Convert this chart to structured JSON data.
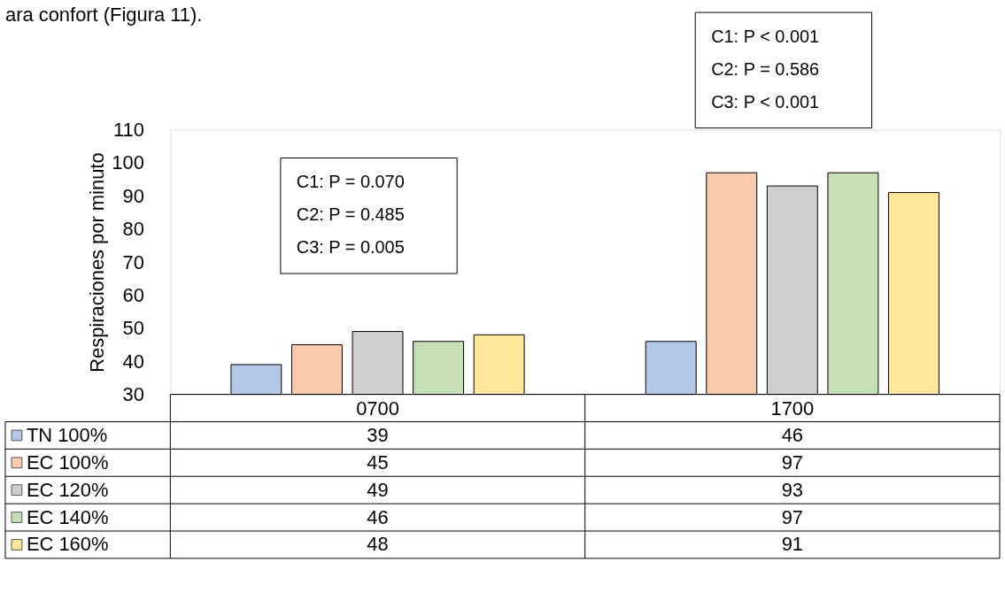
{
  "chart_data": {
    "type": "bar",
    "ylabel": "Respiraciones por minuto",
    "categories": [
      "0700",
      "1700"
    ],
    "series": [
      {
        "name": "TN 100%",
        "color": "#b4c7e7",
        "values": [
          39,
          46
        ]
      },
      {
        "name": "EC 100%",
        "color": "#f8cbad",
        "values": [
          45,
          97
        ]
      },
      {
        "name": "EC 120%",
        "color": "#d0cece",
        "values": [
          49,
          93
        ]
      },
      {
        "name": "EC 140%",
        "color": "#c5e0b4",
        "values": [
          46,
          97
        ]
      },
      {
        "name": "EC 160%",
        "color": "#ffe699",
        "values": [
          48,
          91
        ]
      }
    ],
    "ylim": [
      30,
      110
    ],
    "yticks": [
      30,
      40,
      50,
      60,
      70,
      80,
      90,
      100,
      110
    ],
    "data_labels": true,
    "legend": "bottom",
    "annotations": [
      "C1: P = 0.070\nC2: P = 0.485\nC3: P = 0.005",
      "C1: P < 0.001\nC2: P = 0.586\nC3: P < 0.001",
      "ara confort (Figura 11)."
    ]
  }
}
